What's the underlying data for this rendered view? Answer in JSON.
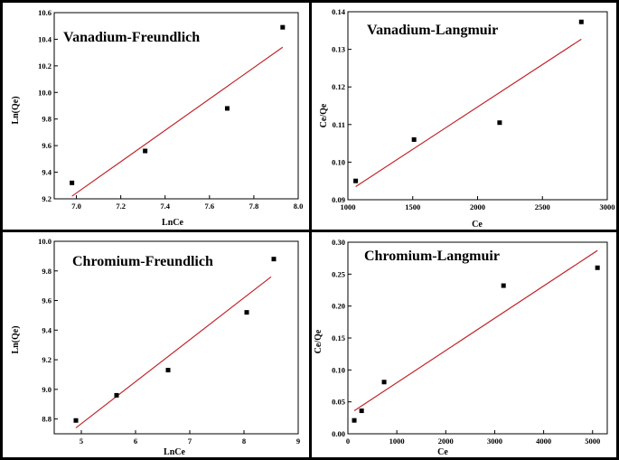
{
  "chart_data": [
    {
      "type": "scatter",
      "title": "Vanadium-Freundlich",
      "xlabel": "LnCe",
      "ylabel": "Ln(Qe)",
      "xlim": [
        6.9,
        8.0
      ],
      "ylim": [
        9.2,
        10.6
      ],
      "xticks": [
        7.0,
        7.2,
        7.4,
        7.6,
        7.8,
        8.0
      ],
      "yticks": [
        9.2,
        9.4,
        9.6,
        9.8,
        10.0,
        10.2,
        10.4,
        10.6
      ],
      "tick_decimals": [
        1,
        1
      ],
      "grid": false,
      "series": [
        {
          "x": [
            6.98,
            7.31,
            7.68,
            7.93
          ],
          "y": [
            9.32,
            9.56,
            9.88,
            10.49
          ],
          "color": "#000000"
        }
      ],
      "fit_line": {
        "x": [
          6.98,
          7.93
        ],
        "y": [
          9.22,
          10.34
        ],
        "color": "#c0272d"
      }
    },
    {
      "type": "scatter",
      "title": "Vanadium-Langmuir",
      "xlabel": "Ce",
      "ylabel": "Ce/Qe",
      "xlim": [
        1000,
        3000
      ],
      "ylim": [
        0.09,
        0.14
      ],
      "xticks": [
        1000,
        1500,
        2000,
        2500,
        3000
      ],
      "yticks": [
        0.09,
        0.1,
        0.11,
        0.12,
        0.13,
        0.14
      ],
      "tick_decimals": [
        0,
        2
      ],
      "grid": false,
      "series": [
        {
          "x": [
            1060,
            1510,
            2170,
            2800
          ],
          "y": [
            0.095,
            0.106,
            0.1105,
            0.1373
          ],
          "color": "#000000"
        }
      ],
      "fit_line": {
        "x": [
          1060,
          2800
        ],
        "y": [
          0.0935,
          0.1327
        ],
        "color": "#c0272d"
      }
    },
    {
      "type": "scatter",
      "title": "Chromium-Freundlich",
      "xlabel": "LnCe",
      "ylabel": "Ln(Qe)",
      "xlim": [
        4.5,
        9
      ],
      "ylim": [
        8.7,
        10.0
      ],
      "xticks": [
        5,
        6,
        7,
        8,
        9
      ],
      "yticks": [
        8.8,
        9.0,
        9.2,
        9.4,
        9.6,
        9.8,
        10.0
      ],
      "tick_decimals": [
        0,
        1
      ],
      "grid": false,
      "series": [
        {
          "x": [
            4.9,
            5.65,
            6.6,
            8.05,
            8.55
          ],
          "y": [
            8.79,
            8.96,
            9.13,
            9.52,
            9.88
          ],
          "color": "#000000"
        }
      ],
      "fit_line": {
        "x": [
          4.9,
          8.5
        ],
        "y": [
          8.74,
          9.76
        ],
        "color": "#c0272d"
      }
    },
    {
      "type": "scatter",
      "title": "Chromium-Langmuir",
      "xlabel": "Ce",
      "ylabel": "Ce/Qe",
      "xlim": [
        0,
        5300
      ],
      "ylim": [
        0.0,
        0.3
      ],
      "xticks": [
        0,
        1000,
        2000,
        3000,
        4000,
        5000
      ],
      "yticks": [
        0.0,
        0.05,
        0.1,
        0.15,
        0.2,
        0.25,
        0.3
      ],
      "tick_decimals": [
        0,
        2
      ],
      "grid": false,
      "series": [
        {
          "x": [
            130,
            280,
            740,
            3180,
            5100
          ],
          "y": [
            0.021,
            0.036,
            0.081,
            0.232,
            0.26
          ],
          "color": "#000000"
        }
      ],
      "fit_line": {
        "x": [
          130,
          5100
        ],
        "y": [
          0.036,
          0.287
        ],
        "color": "#c0272d"
      }
    }
  ]
}
